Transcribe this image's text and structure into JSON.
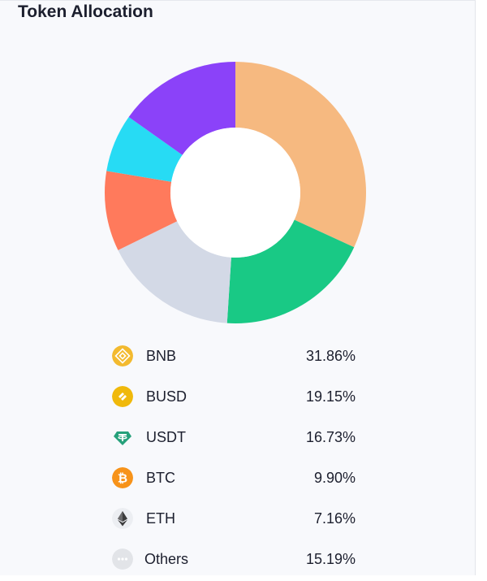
{
  "title": "Token Allocation",
  "chart_data": {
    "type": "pie",
    "variant": "donut",
    "categories": [
      "BNB",
      "BUSD",
      "USDT",
      "BTC",
      "ETH",
      "Others"
    ],
    "values": [
      31.86,
      19.15,
      16.73,
      9.9,
      7.16,
      15.19
    ],
    "value_labels": [
      "31.86%",
      "19.15%",
      "16.73%",
      "9.90%",
      "7.16%",
      "15.19%"
    ],
    "colors": [
      "#f6b980",
      "#19c985",
      "#d3d9e6",
      "#ff7a5c",
      "#27dbf4",
      "#8b42f9"
    ],
    "start": "top, clockwise"
  },
  "legend": {
    "items": [
      {
        "label": "BNB",
        "value": "31.86%",
        "icon": "bnb-icon",
        "icon_color": "#f3ba2f"
      },
      {
        "label": "BUSD",
        "value": "19.15%",
        "icon": "busd-icon",
        "icon_color": "#f0b90b"
      },
      {
        "label": "USDT",
        "value": "16.73%",
        "icon": "usdt-icon",
        "icon_color": "#26a17b"
      },
      {
        "label": "BTC",
        "value": "9.90%",
        "icon": "btc-icon",
        "icon_color": "#f7931a"
      },
      {
        "label": "ETH",
        "value": "7.16%",
        "icon": "eth-icon",
        "icon_color": "#3c3c3d"
      },
      {
        "label": "Others",
        "value": "15.19%",
        "icon": "others-icon",
        "icon_color": "#e2e4e8"
      }
    ]
  }
}
